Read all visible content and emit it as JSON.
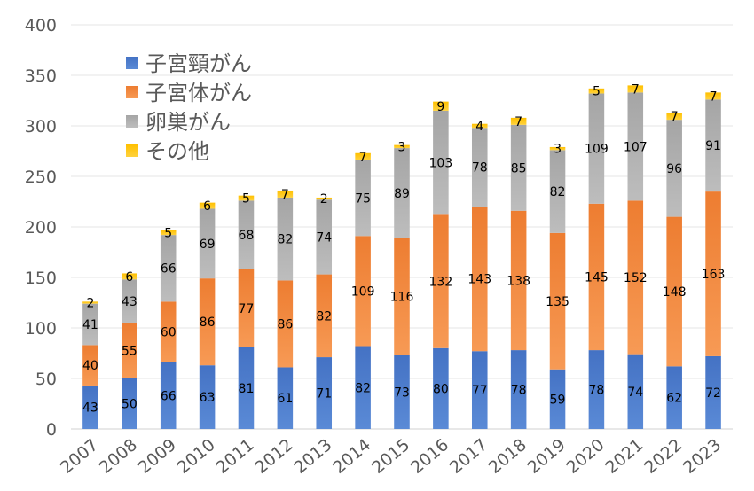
{
  "chart_data": {
    "type": "bar",
    "stacked": true,
    "categories": [
      "2007",
      "2008",
      "2009",
      "2010",
      "2011",
      "2012",
      "2013",
      "2014",
      "2015",
      "2016",
      "2017",
      "2018",
      "2019",
      "2020",
      "2021",
      "2022",
      "2023"
    ],
    "series": [
      {
        "name": "子宮頸がん",
        "color": "#4472C4",
        "values": [
          43,
          50,
          66,
          63,
          81,
          61,
          71,
          82,
          73,
          80,
          77,
          78,
          59,
          78,
          74,
          62,
          72
        ]
      },
      {
        "name": "子宮体がん",
        "color": "#ED7D31",
        "values": [
          40,
          55,
          60,
          86,
          77,
          86,
          82,
          109,
          116,
          132,
          143,
          138,
          135,
          145,
          152,
          148,
          163
        ]
      },
      {
        "name": "卵巣がん",
        "color": "#A5A5A5",
        "values": [
          41,
          43,
          66,
          69,
          68,
          82,
          74,
          75,
          89,
          103,
          78,
          85,
          82,
          109,
          107,
          96,
          91
        ]
      },
      {
        "name": "その他",
        "color": "#FFC000",
        "values": [
          2,
          6,
          5,
          6,
          5,
          7,
          2,
          7,
          3,
          9,
          4,
          7,
          3,
          5,
          7,
          7,
          7
        ]
      }
    ],
    "ylim": [
      0,
      400
    ],
    "yticks": [
      0,
      50,
      100,
      150,
      200,
      250,
      300,
      350,
      400
    ],
    "grid": true,
    "legend": "top-left"
  }
}
